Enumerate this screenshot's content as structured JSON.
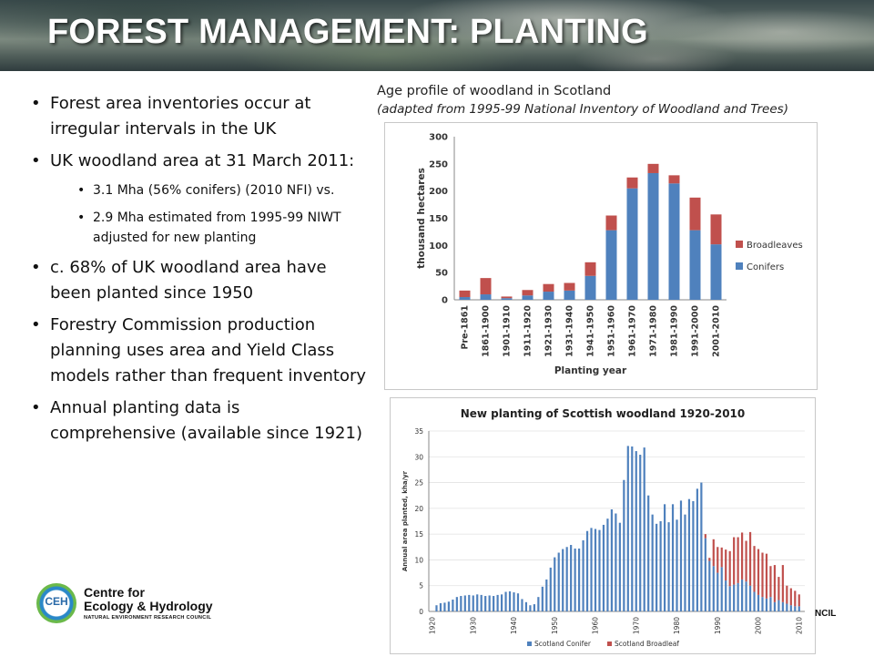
{
  "header": {
    "title": "FOREST MANAGEMENT: PLANTING"
  },
  "bullets": [
    {
      "text": "Forest area inventories occur at irregular intervals in the UK"
    },
    {
      "text": "UK woodland area at 31 March 2011:",
      "sub": [
        {
          "text": "3.1 Mha (56% conifers)  (2010 NFI) vs."
        },
        {
          "text": "2.9 Mha estimated from 1995-99 NIWT adjusted for new planting"
        }
      ]
    },
    {
      "text": "c. 68% of UK woodland area have been planted since 1950"
    },
    {
      "text": "Forestry Commission production planning uses area and Yield Class models rather than frequent inventory"
    },
    {
      "text": "Annual planting data is comprehensive (available since 1921)"
    }
  ],
  "caption": {
    "line1": "Age profile of woodland in Scotland",
    "line2": "(adapted from 1995-99 National Inventory of Woodland and Trees)"
  },
  "logo": {
    "mark": "CEH",
    "line1": "Centre for",
    "line2": "Ecology & Hydrology",
    "line3": "NATURAL ENVIRONMENT RESEARCH COUNCIL"
  },
  "fragment": "NCIL",
  "colors": {
    "conifer": "#4f81bd",
    "broadleaf": "#c0504d"
  },
  "chart_data": [
    {
      "type": "bar",
      "stacked": true,
      "title": "",
      "xlabel": "Planting year",
      "ylabel": "thousand hectares",
      "ylim": [
        0,
        300
      ],
      "yticks": [
        0,
        50,
        100,
        150,
        200,
        250,
        300
      ],
      "legend_position": "right",
      "categories": [
        "Pre-1861",
        "1861-1900",
        "1901-1910",
        "1911-1920",
        "1921-1930",
        "1931-1940",
        "1941-1950",
        "1951-1960",
        "1961-1970",
        "1971-1980",
        "1981-1990",
        "1991-2000",
        "2001-2010"
      ],
      "series": [
        {
          "name": "Conifers",
          "values": [
            5,
            10,
            3,
            8,
            15,
            17,
            44,
            128,
            205,
            233,
            214,
            128,
            102
          ]
        },
        {
          "name": "Broadleaves",
          "values": [
            12,
            30,
            3,
            10,
            14,
            14,
            25,
            27,
            20,
            17,
            15,
            60,
            55
          ]
        }
      ]
    },
    {
      "type": "bar",
      "stacked": true,
      "title": "New planting of Scottish woodland 1920-2010",
      "xlabel": "",
      "ylabel": "Annual area planted, kha/yr",
      "ylim": [
        0,
        35
      ],
      "yticks": [
        0,
        5,
        10,
        15,
        20,
        25,
        30,
        35
      ],
      "xticks": [
        1920,
        1930,
        1940,
        1950,
        1960,
        1970,
        1980,
        1990,
        2000,
        2010
      ],
      "legend_position": "bottom",
      "x_start": 1921,
      "series": [
        {
          "name": "Scotland Conifer",
          "values": [
            1.2,
            1.6,
            1.7,
            1.9,
            2.3,
            2.8,
            3.0,
            3.1,
            3.2,
            3.1,
            3.3,
            3.2,
            3.0,
            3.1,
            3.0,
            3.2,
            3.3,
            3.8,
            3.9,
            3.7,
            3.5,
            2.4,
            1.8,
            1.2,
            1.4,
            2.8,
            4.8,
            6.2,
            8.5,
            10.5,
            11.4,
            12.1,
            12.5,
            12.9,
            12.2,
            12.2,
            13.8,
            15.6,
            16.2,
            16.0,
            15.8,
            16.8,
            18.0,
            19.8,
            19.0,
            17.2,
            25.5,
            32.1,
            32.0,
            31.1,
            30.4,
            31.8,
            22.5,
            18.8,
            17.0,
            17.5,
            20.8,
            17.3,
            20.8,
            17.8,
            21.5,
            18.8,
            21.8,
            21.4,
            23.8,
            25.0,
            14.2,
            9.8,
            8.8,
            7.5,
            8.6,
            6.0,
            4.9,
            5.2,
            5.5,
            6.2,
            5.8,
            5.0,
            3.8,
            3.2,
            2.8,
            2.5,
            2.8,
            1.8,
            2.2,
            1.8,
            1.5,
            1.2,
            1.0,
            1.0
          ]
        },
        {
          "name": "Scotland Broadleaf",
          "values": [
            0,
            0,
            0,
            0,
            0,
            0,
            0,
            0,
            0,
            0,
            0,
            0,
            0,
            0,
            0,
            0,
            0,
            0,
            0,
            0,
            0,
            0,
            0,
            0,
            0,
            0,
            0,
            0,
            0,
            0,
            0,
            0,
            0,
            0,
            0,
            0,
            0,
            0,
            0,
            0,
            0,
            0,
            0,
            0,
            0,
            0,
            0,
            0,
            0,
            0,
            0,
            0,
            0,
            0,
            0,
            0,
            0,
            0,
            0,
            0,
            0,
            0,
            0,
            0,
            0,
            0,
            0.8,
            0.6,
            5.2,
            5.0,
            3.8,
            6.0,
            6.8,
            9.2,
            8.9,
            9.1,
            7.9,
            10.4,
            8.9,
            8.9,
            8.6,
            8.7,
            6.0,
            7.2,
            4.5,
            7.2,
            3.5,
            3.3,
            3.0,
            2.3,
            1.8
          ]
        }
      ]
    }
  ]
}
